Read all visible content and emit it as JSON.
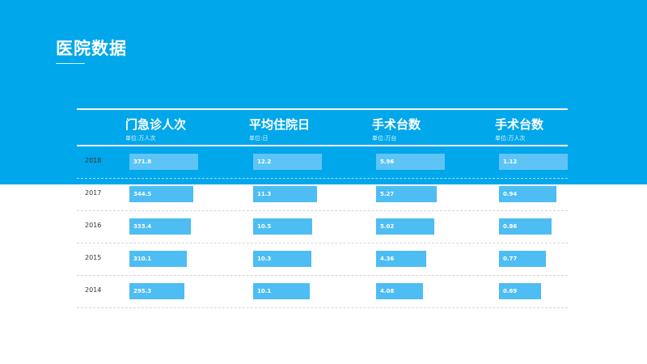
{
  "title": "医院数据",
  "chart_data": {
    "type": "bar",
    "title": "医院数据",
    "categories": [
      "2018",
      "2017",
      "2016",
      "2015",
      "2014"
    ],
    "series": [
      {
        "name": "门急诊人次",
        "unit": "单位:万人次",
        "labels": [
          "371.8",
          "344.5",
          "333.4",
          "310.1",
          "295.3"
        ],
        "values": [
          371.8,
          344.5,
          333.4,
          310.1,
          295.3
        ]
      },
      {
        "name": "平均住院日",
        "unit": "单位:日",
        "labels": [
          "12.2",
          "11.3",
          "10.5",
          "10.3",
          "10.1"
        ],
        "values": [
          12.2,
          11.3,
          10.5,
          10.3,
          10.1
        ]
      },
      {
        "name": "手术台数",
        "unit": "单位:万台",
        "labels": [
          "5.96",
          "5.27",
          "5.02",
          "4.36",
          "4.08"
        ],
        "values": [
          5.96,
          5.27,
          5.02,
          4.36,
          4.08
        ]
      },
      {
        "name": "手术台数",
        "unit": "单位:万人次",
        "labels": [
          "1.12",
          "0.94",
          "0.86",
          "0.77",
          "0.69"
        ],
        "values": [
          1.12,
          0.94,
          0.86,
          0.77,
          0.69
        ]
      }
    ]
  },
  "colors": {
    "band": "#00a7ea",
    "bar": "#4dbdf3",
    "bar_first": "#5ec4f5",
    "year_text": "#333333"
  }
}
